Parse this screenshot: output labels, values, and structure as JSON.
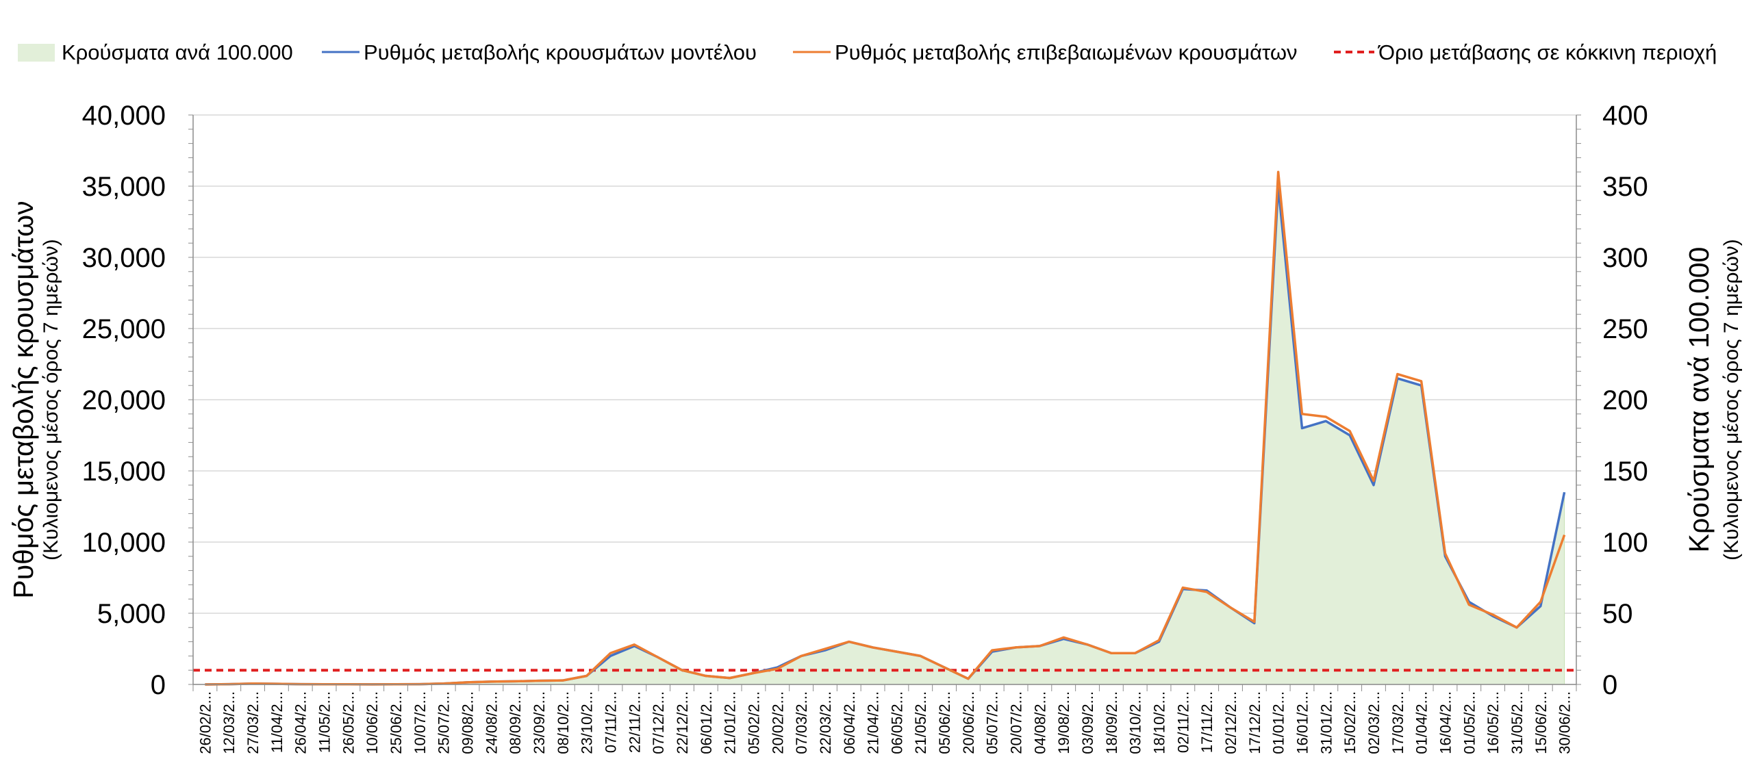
{
  "chart_data": {
    "type": "line",
    "legend": {
      "placement": "top",
      "items": [
        {
          "label": "Κρούσματα ανά 100.000",
          "kind": "area",
          "color": "#e2efd9"
        },
        {
          "label": "Ρυθμός μεταβολής κρουσμάτων μοντέλου",
          "kind": "line",
          "color": "#4472c4"
        },
        {
          "label": "Ρυθμός μεταβολής επιβεβαιωμένων κρουσμάτων",
          "kind": "line",
          "color": "#ed7d31"
        },
        {
          "label": "Όριο μετάβασης σε κόκκινη περιοχή",
          "kind": "dashed",
          "color": "#e02020"
        }
      ]
    },
    "y_left": {
      "title": "Ρυθμός μεταβολής κρουσμάτων",
      "subtitle": "(Κυλιομενος μέσος όρος 7 ημερών)",
      "range": [
        0,
        40000
      ],
      "ticks": [
        "0",
        "5,000",
        "10,000",
        "15,000",
        "20,000",
        "25,000",
        "30,000",
        "35,000",
        "40,000"
      ]
    },
    "y_right": {
      "title": "Κρούσματα ανά 100.000",
      "subtitle": "(Κυλιομενος μέσος όρος 7 ημερών)",
      "range": [
        0,
        400
      ],
      "ticks": [
        "0",
        "50",
        "100",
        "150",
        "200",
        "250",
        "300",
        "350",
        "400"
      ]
    },
    "x_ticks": [
      "26/02/2...",
      "12/03/2...",
      "27/03/2...",
      "11/04/2...",
      "26/04/2...",
      "11/05/2...",
      "26/05/2...",
      "10/06/2...",
      "25/06/2...",
      "10/07/2...",
      "25/07/2...",
      "09/08/2...",
      "24/08/2...",
      "08/09/2...",
      "23/09/2...",
      "08/10/2...",
      "23/10/2...",
      "07/11/2...",
      "22/11/2...",
      "07/12/2...",
      "22/12/2...",
      "06/01/2...",
      "21/01/2...",
      "05/02/2...",
      "20/02/2...",
      "07/03/2...",
      "22/03/2...",
      "06/04/2...",
      "21/04/2...",
      "06/05/2...",
      "21/05/2...",
      "05/06/2...",
      "20/06/2...",
      "05/07/2...",
      "20/07/2...",
      "04/08/2...",
      "19/08/2...",
      "03/09/2...",
      "18/09/2...",
      "03/10/2...",
      "18/10/2...",
      "02/11/2...",
      "17/11/2...",
      "02/12/2...",
      "17/12/2...",
      "01/01/2...",
      "16/01/2...",
      "31/01/2...",
      "15/02/2...",
      "02/03/2...",
      "17/03/2...",
      "01/04/2...",
      "16/04/2...",
      "01/05/2...",
      "16/05/2...",
      "31/05/2...",
      "15/06/2...",
      "30/06/2..."
    ],
    "threshold_left": 1000,
    "grid": true,
    "series": [
      {
        "name": "Ρυθμός μεταβολής κρουσμάτων μοντέλου",
        "axis": "left",
        "values": [
          0,
          20,
          60,
          40,
          20,
          15,
          10,
          8,
          10,
          20,
          60,
          150,
          200,
          220,
          260,
          280,
          600,
          2000,
          2700,
          1900,
          1000,
          600,
          450,
          800,
          1200,
          2000,
          2400,
          3000,
          2600,
          2300,
          2000,
          1200,
          400,
          2300,
          2600,
          2700,
          3200,
          2800,
          2200,
          2200,
          3000,
          6700,
          6600,
          5400,
          4300,
          35000,
          18000,
          18500,
          17500,
          14000,
          21500,
          21000,
          9000,
          5800,
          4800,
          4000,
          5500,
          13500
        ]
      },
      {
        "name": "Ρυθμός μεταβολής επιβεβαιωμένων κρουσμάτων",
        "axis": "left",
        "values": [
          0,
          20,
          60,
          40,
          20,
          15,
          10,
          8,
          10,
          20,
          60,
          150,
          200,
          220,
          260,
          280,
          600,
          2200,
          2800,
          1900,
          1000,
          600,
          450,
          800,
          1100,
          2000,
          2500,
          3000,
          2600,
          2300,
          2000,
          1200,
          400,
          2400,
          2600,
          2700,
          3300,
          2800,
          2200,
          2200,
          3100,
          6800,
          6500,
          5400,
          4400,
          36000,
          19000,
          18800,
          17800,
          14300,
          21800,
          21300,
          9200,
          5600,
          4900,
          4000,
          5800,
          10500
        ]
      },
      {
        "name": "Κρούσματα ανά 100.000",
        "axis": "right",
        "values": [
          0,
          0.2,
          0.6,
          0.4,
          0.2,
          0.15,
          0.1,
          0.08,
          0.1,
          0.2,
          0.6,
          1.5,
          2,
          2.2,
          2.6,
          2.8,
          6,
          20,
          27,
          19,
          10,
          6,
          4.5,
          8,
          12,
          20,
          24,
          30,
          26,
          23,
          20,
          12,
          4,
          23,
          26,
          27,
          32,
          28,
          22,
          22,
          30,
          67,
          66,
          54,
          43,
          350,
          180,
          185,
          175,
          140,
          215,
          210,
          90,
          58,
          48,
          40,
          55,
          135
        ]
      }
    ]
  }
}
